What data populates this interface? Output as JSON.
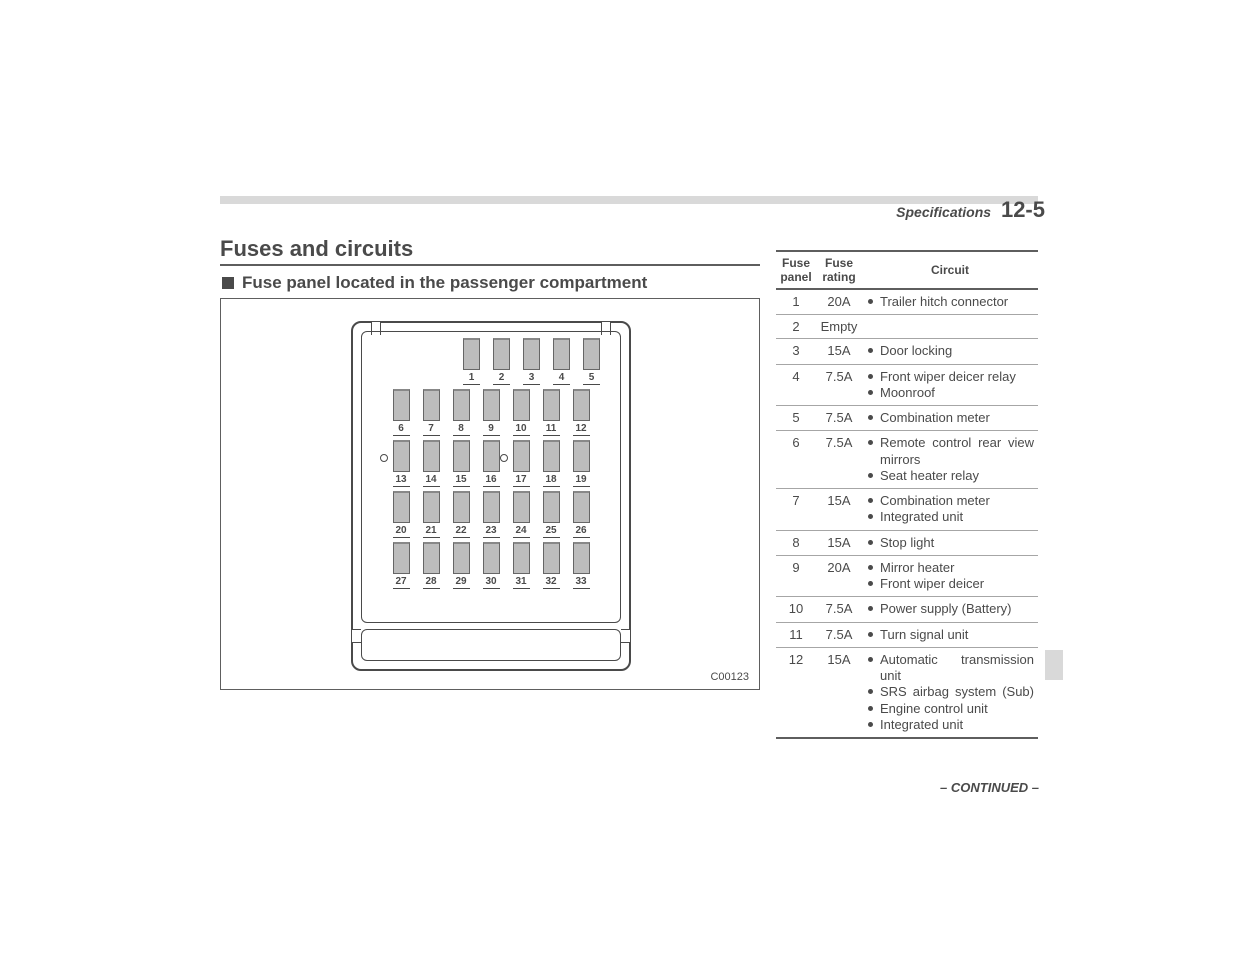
{
  "header": {
    "section": "Specifications",
    "pagenum": "12-5"
  },
  "titles": {
    "main": "Fuses and circuits",
    "sub": "Fuse panel located in the passenger compartment"
  },
  "diagram": {
    "id": "C00123",
    "rows": [
      {
        "first": true,
        "circles": [],
        "nums": [
          "1",
          "2",
          "3",
          "4",
          "5"
        ]
      },
      {
        "first": false,
        "circles": [],
        "nums": [
          "6",
          "7",
          "8",
          "9",
          "10",
          "11",
          "12"
        ]
      },
      {
        "first": false,
        "circles": [
          "left",
          "mid"
        ],
        "nums": [
          "13",
          "14",
          "15",
          "16",
          "17",
          "18",
          "19"
        ]
      },
      {
        "first": false,
        "circles": [],
        "nums": [
          "20",
          "21",
          "22",
          "23",
          "24",
          "25",
          "26"
        ]
      },
      {
        "first": false,
        "circles": [],
        "nums": [
          "27",
          "28",
          "29",
          "30",
          "31",
          "32",
          "33"
        ]
      }
    ]
  },
  "table": {
    "headers": {
      "panel": "Fuse panel",
      "rating": "Fuse rating",
      "circuit": "Circuit"
    },
    "rows": [
      {
        "panel": "1",
        "rating": "20A",
        "circuits": [
          "Trailer hitch connector"
        ]
      },
      {
        "panel": "2",
        "rating": "Empty",
        "circuits": []
      },
      {
        "panel": "3",
        "rating": "15A",
        "circuits": [
          "Door locking"
        ]
      },
      {
        "panel": "4",
        "rating": "7.5A",
        "circuits": [
          "Front wiper deicer relay",
          "Moonroof"
        ]
      },
      {
        "panel": "5",
        "rating": "7.5A",
        "circuits": [
          "Combination meter"
        ]
      },
      {
        "panel": "6",
        "rating": "7.5A",
        "circuits": [
          "Remote control rear view mirrors",
          "Seat heater relay"
        ],
        "justifyFirst": true
      },
      {
        "panel": "7",
        "rating": "15A",
        "circuits": [
          "Combination meter",
          "Integrated unit"
        ]
      },
      {
        "panel": "8",
        "rating": "15A",
        "circuits": [
          "Stop light"
        ]
      },
      {
        "panel": "9",
        "rating": "20A",
        "circuits": [
          "Mirror heater",
          "Front wiper deicer"
        ]
      },
      {
        "panel": "10",
        "rating": "7.5A",
        "circuits": [
          "Power supply (Battery)"
        ]
      },
      {
        "panel": "11",
        "rating": "7.5A",
        "circuits": [
          "Turn signal unit"
        ]
      },
      {
        "panel": "12",
        "rating": "15A",
        "circuits": [
          "Automatic transmission unit",
          "SRS airbag system (Sub)",
          "Engine control unit",
          "Integrated unit"
        ],
        "justifyIdx": [
          0,
          1
        ]
      }
    ]
  },
  "footer": {
    "continued": "– CONTINUED –"
  },
  "colors": {
    "rule": "#d9d9d9",
    "text": "#4a4a4a",
    "fuse_fill": "#bdbdbd"
  }
}
